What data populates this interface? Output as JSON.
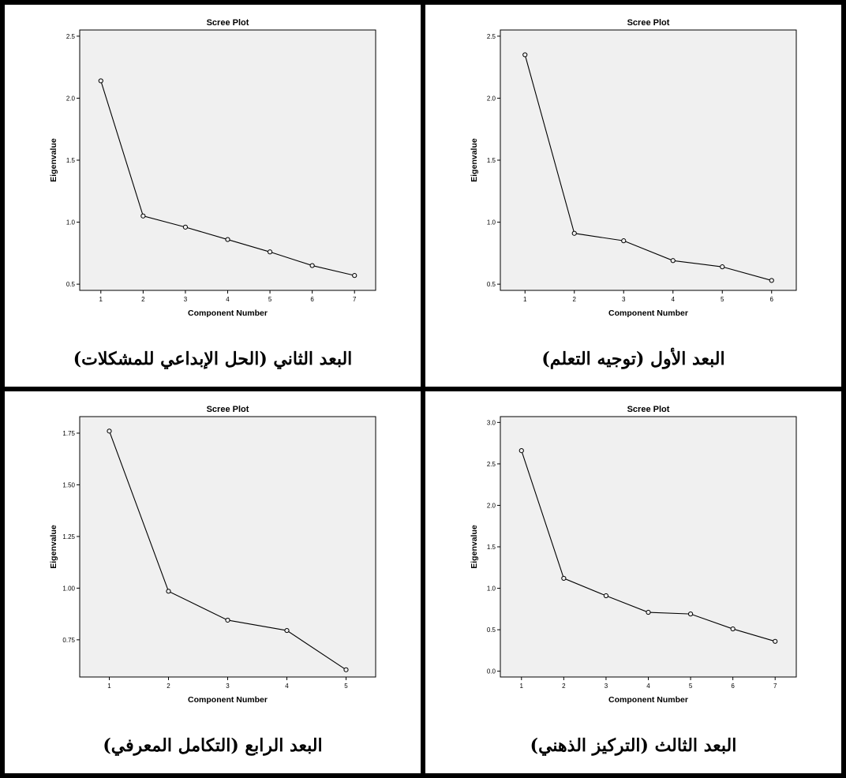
{
  "chart_data": [
    {
      "type": "line",
      "title": "Scree Plot",
      "xlabel": "Component Number",
      "ylabel": "Eigenvalue",
      "x": [
        1,
        2,
        3,
        4,
        5,
        6
      ],
      "values": [
        2.35,
        0.91,
        0.85,
        0.69,
        0.64,
        0.53
      ],
      "xlim": [
        0.5,
        6.5
      ],
      "ylim": [
        0.45,
        2.55
      ],
      "yticks": [
        "0.5",
        "1.0",
        "1.5",
        "2.0",
        "2.5"
      ],
      "ytick_values": [
        0.5,
        1.0,
        1.5,
        2.0,
        2.5
      ],
      "caption": "البعد الأول (توجيه التعلم)",
      "grid": false
    },
    {
      "type": "line",
      "title": "Scree Plot",
      "xlabel": "Component Number",
      "ylabel": "Eigenvalue",
      "x": [
        1,
        2,
        3,
        4,
        5,
        6,
        7
      ],
      "values": [
        2.14,
        1.05,
        0.96,
        0.86,
        0.76,
        0.65,
        0.57
      ],
      "xlim": [
        0.5,
        7.5
      ],
      "ylim": [
        0.45,
        2.55
      ],
      "yticks": [
        "0.5",
        "1.0",
        "1.5",
        "2.0",
        "2.5"
      ],
      "ytick_values": [
        0.5,
        1.0,
        1.5,
        2.0,
        2.5
      ],
      "caption": "البعد الثاني (الحل الإبداعي للمشكلات)",
      "grid": false
    },
    {
      "type": "line",
      "title": "Scree Plot",
      "xlabel": "Component Number",
      "ylabel": "Eigenvalue",
      "x": [
        1,
        2,
        3,
        4,
        5,
        6,
        7
      ],
      "values": [
        2.66,
        1.12,
        0.91,
        0.71,
        0.69,
        0.51,
        0.36
      ],
      "xlim": [
        0.5,
        7.5
      ],
      "ylim": [
        -0.07,
        3.07
      ],
      "yticks": [
        "0.0",
        "0.5",
        "1.0",
        "1.5",
        "2.0",
        "2.5",
        "3.0"
      ],
      "ytick_values": [
        0.0,
        0.5,
        1.0,
        1.5,
        2.0,
        2.5,
        3.0
      ],
      "caption": "البعد الثالث (التركيز الذهني)",
      "grid": false
    },
    {
      "type": "line",
      "title": "Scree Plot",
      "xlabel": "Component Number",
      "ylabel": "Eigenvalue",
      "x": [
        1,
        2,
        3,
        4,
        5
      ],
      "values": [
        1.76,
        0.985,
        0.845,
        0.795,
        0.605
      ],
      "xlim": [
        0.5,
        5.5
      ],
      "ylim": [
        0.57,
        1.83
      ],
      "yticks": [
        "0.75",
        "1.00",
        "1.25",
        "1.50",
        "1.75"
      ],
      "ytick_values": [
        0.75,
        1.0,
        1.25,
        1.5,
        1.75
      ],
      "caption": "البعد الرابع (التكامل المعرفي)",
      "grid": false
    }
  ],
  "colors": {
    "plot_background": "#f0f0f0",
    "line": "#000000",
    "frame": "#000000"
  }
}
